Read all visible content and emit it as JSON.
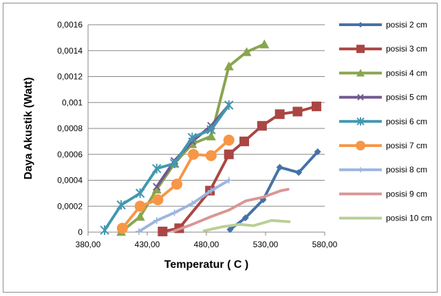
{
  "chart_data": {
    "type": "line",
    "title": "",
    "xlabel": "Temperatur ( C )",
    "ylabel": "Daya Akustik (Watt)",
    "xlim": [
      380,
      580
    ],
    "ylim": [
      0,
      0.0016
    ],
    "x_ticks": [
      "380,00",
      "430,00",
      "480,00",
      "530,00",
      "580,00"
    ],
    "x_tick_values": [
      380,
      430,
      480,
      530,
      580
    ],
    "y_ticks": [
      "0",
      "0,0002",
      "0,0004",
      "0,0006",
      "0,0008",
      "0,001",
      "0,0012",
      "0,0014",
      "0,0016"
    ],
    "y_tick_values": [
      0,
      0.0002,
      0.0004,
      0.0006,
      0.0008,
      0.001,
      0.0012,
      0.0014,
      0.0016
    ],
    "grid": true,
    "legend_position": "right",
    "series": [
      {
        "name": "posisi 2 cm",
        "color": "#4572A7",
        "marker": "diamond",
        "x": [
          500,
          513,
          528,
          542,
          558,
          574
        ],
        "y": [
          2e-05,
          0.00011,
          0.00025,
          0.0005,
          0.00046,
          0.00062
        ]
      },
      {
        "name": "posisi 3 cm",
        "color": "#AA4643",
        "marker": "square",
        "x": [
          443,
          457,
          483,
          499,
          512,
          527,
          542,
          557,
          573
        ],
        "y": [
          5e-06,
          3e-05,
          0.00032,
          0.0006,
          0.0007,
          0.00082,
          0.00091,
          0.00093,
          0.00097
        ]
      },
      {
        "name": "posisi 4 cm",
        "color": "#89A54E",
        "marker": "triangle",
        "x": [
          408,
          424,
          438,
          453,
          468,
          484,
          499,
          514,
          529
        ],
        "y": [
          3e-06,
          0.00012,
          0.00033,
          0.00053,
          0.00068,
          0.00074,
          0.00128,
          0.00139,
          0.00145
        ]
      },
      {
        "name": "posisi 5 cm",
        "color": "#71588F",
        "marker": "x",
        "x": [
          438,
          453,
          468,
          484,
          499
        ],
        "y": [
          0.00035,
          0.00055,
          0.0007,
          0.00082,
          0.00098
        ]
      },
      {
        "name": "posisi 6 cm",
        "color": "#4198AF",
        "marker": "star",
        "x": [
          394,
          408,
          424,
          438,
          453,
          468,
          484,
          499
        ],
        "y": [
          1.5e-05,
          0.00021,
          0.0003,
          0.00049,
          0.00053,
          0.00073,
          0.00079,
          0.00098
        ]
      },
      {
        "name": "posisi 7 cm",
        "color": "#F79646",
        "marker": "circle",
        "x": [
          409,
          424,
          439,
          455,
          469,
          484,
          499
        ],
        "y": [
          3e-05,
          0.0002,
          0.00025,
          0.00037,
          0.0006,
          0.00059,
          0.00071
        ]
      },
      {
        "name": "posisi 8 cm",
        "color": "#9DB5E0",
        "marker": "plus",
        "x": [
          423,
          438,
          453,
          468,
          484,
          499
        ],
        "y": [
          5e-06,
          9e-05,
          0.00015,
          0.00022,
          0.00032,
          0.0004
        ]
      },
      {
        "name": "posisi 9 cm",
        "color": "#D99694",
        "marker": "none",
        "x": [
          453,
          468,
          484,
          499,
          513,
          528,
          543,
          549
        ],
        "y": [
          1e-05,
          6e-05,
          0.00012,
          0.00017,
          0.00024,
          0.00027,
          0.00032,
          0.00033
        ]
      },
      {
        "name": "posisi 10 cm",
        "color": "#B9CF96",
        "marker": "none",
        "x": [
          478,
          493,
          508,
          520,
          535,
          550
        ],
        "y": [
          1e-05,
          4e-05,
          6e-05,
          5e-05,
          9e-05,
          8e-05
        ]
      }
    ]
  }
}
